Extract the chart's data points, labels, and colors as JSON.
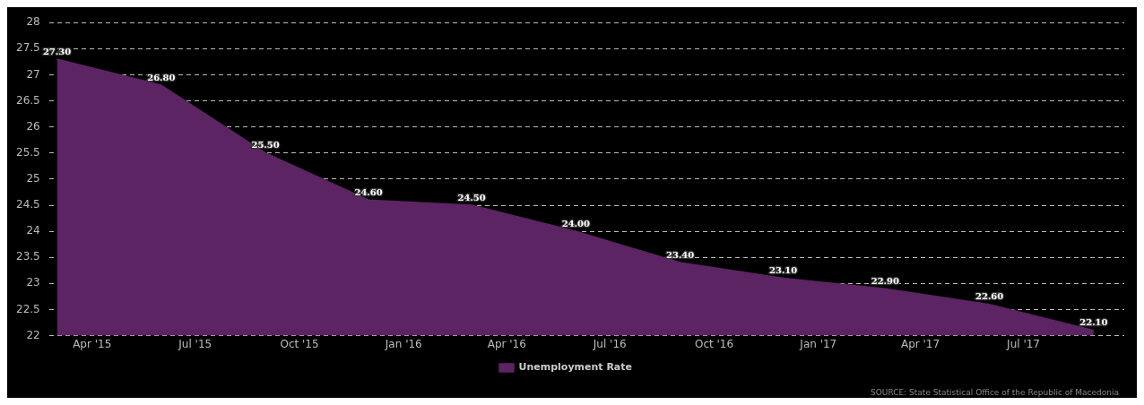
{
  "chart_data": {
    "type": "area",
    "x": [
      "2015-03",
      "2015-06",
      "2015-09",
      "2015-12",
      "2016-03",
      "2016-06",
      "2016-09",
      "2016-12",
      "2017-03",
      "2017-06",
      "2017-09"
    ],
    "series": [
      {
        "name": "Unemployment Rate",
        "color": "#5c2462",
        "values": [
          27.3,
          26.8,
          25.5,
          24.6,
          24.5,
          24.0,
          23.4,
          23.1,
          22.9,
          22.6,
          22.1
        ]
      }
    ],
    "value_labels": [
      "27.30",
      "26.80",
      "25.50",
      "24.60",
      "24.50",
      "24.00",
      "23.40",
      "23.10",
      "22.90",
      "22.60",
      "22.10"
    ],
    "xlim": [
      "2015-02-22",
      "2017-09-28"
    ],
    "xticks": [
      {
        "value": "2015-04",
        "label": "Apr '15"
      },
      {
        "value": "2015-07",
        "label": "Jul '15"
      },
      {
        "value": "2015-10",
        "label": "Oct '15"
      },
      {
        "value": "2016-01",
        "label": "Jan '16"
      },
      {
        "value": "2016-04",
        "label": "Apr '16"
      },
      {
        "value": "2016-07",
        "label": "Jul '16"
      },
      {
        "value": "2016-10",
        "label": "Oct '16"
      },
      {
        "value": "2017-01",
        "label": "Jan '17"
      },
      {
        "value": "2017-04",
        "label": "Apr '17"
      },
      {
        "value": "2017-07",
        "label": "Jul '17"
      }
    ],
    "ylim": [
      22,
      28
    ],
    "yticks": [
      22,
      22.5,
      23,
      23.5,
      24,
      24.5,
      25,
      25.5,
      26,
      26.5,
      27,
      27.5,
      28
    ],
    "grid": "y",
    "legend": "bottom",
    "marker": "none",
    "annotations": [
      "SOURCE: State Statistical Office of the Republic of Macedonia"
    ]
  }
}
